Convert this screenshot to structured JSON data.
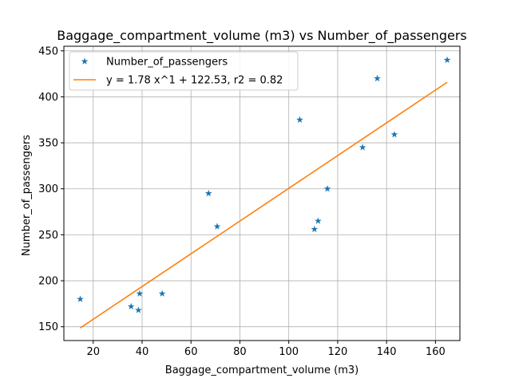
{
  "chart_data": {
    "type": "scatter",
    "title": "Baggage_compartment_volume (m3) vs Number_of_passengers",
    "xlabel": "Baggage_compartment_volume (m3)",
    "ylabel": "Number_of_passengers",
    "xlim": [
      8,
      170
    ],
    "ylim": [
      135,
      455
    ],
    "xticks": [
      20,
      40,
      60,
      80,
      100,
      120,
      140,
      160
    ],
    "yticks": [
      150,
      200,
      250,
      300,
      350,
      400,
      450
    ],
    "grid": true,
    "legend_position": "top-left",
    "series": [
      {
        "name": "Number_of_passengers",
        "kind": "scatter",
        "marker": "star",
        "color": "#1f77b4",
        "points": [
          {
            "x": 14.7,
            "y": 180
          },
          {
            "x": 35.5,
            "y": 172
          },
          {
            "x": 38.5,
            "y": 168
          },
          {
            "x": 39.0,
            "y": 186
          },
          {
            "x": 48.2,
            "y": 186
          },
          {
            "x": 67.2,
            "y": 295
          },
          {
            "x": 70.7,
            "y": 259
          },
          {
            "x": 104.5,
            "y": 375
          },
          {
            "x": 110.5,
            "y": 256
          },
          {
            "x": 112.0,
            "y": 265
          },
          {
            "x": 115.8,
            "y": 300
          },
          {
            "x": 130.2,
            "y": 345
          },
          {
            "x": 136.2,
            "y": 420
          },
          {
            "x": 143.2,
            "y": 359
          },
          {
            "x": 164.8,
            "y": 440
          }
        ]
      },
      {
        "name": "y = 1.78 x^1 + 122.53, r2 = 0.82",
        "kind": "line",
        "color": "#ff7f0e",
        "slope": 1.78,
        "intercept": 122.53,
        "x_range": [
          14.7,
          164.8
        ]
      }
    ]
  }
}
